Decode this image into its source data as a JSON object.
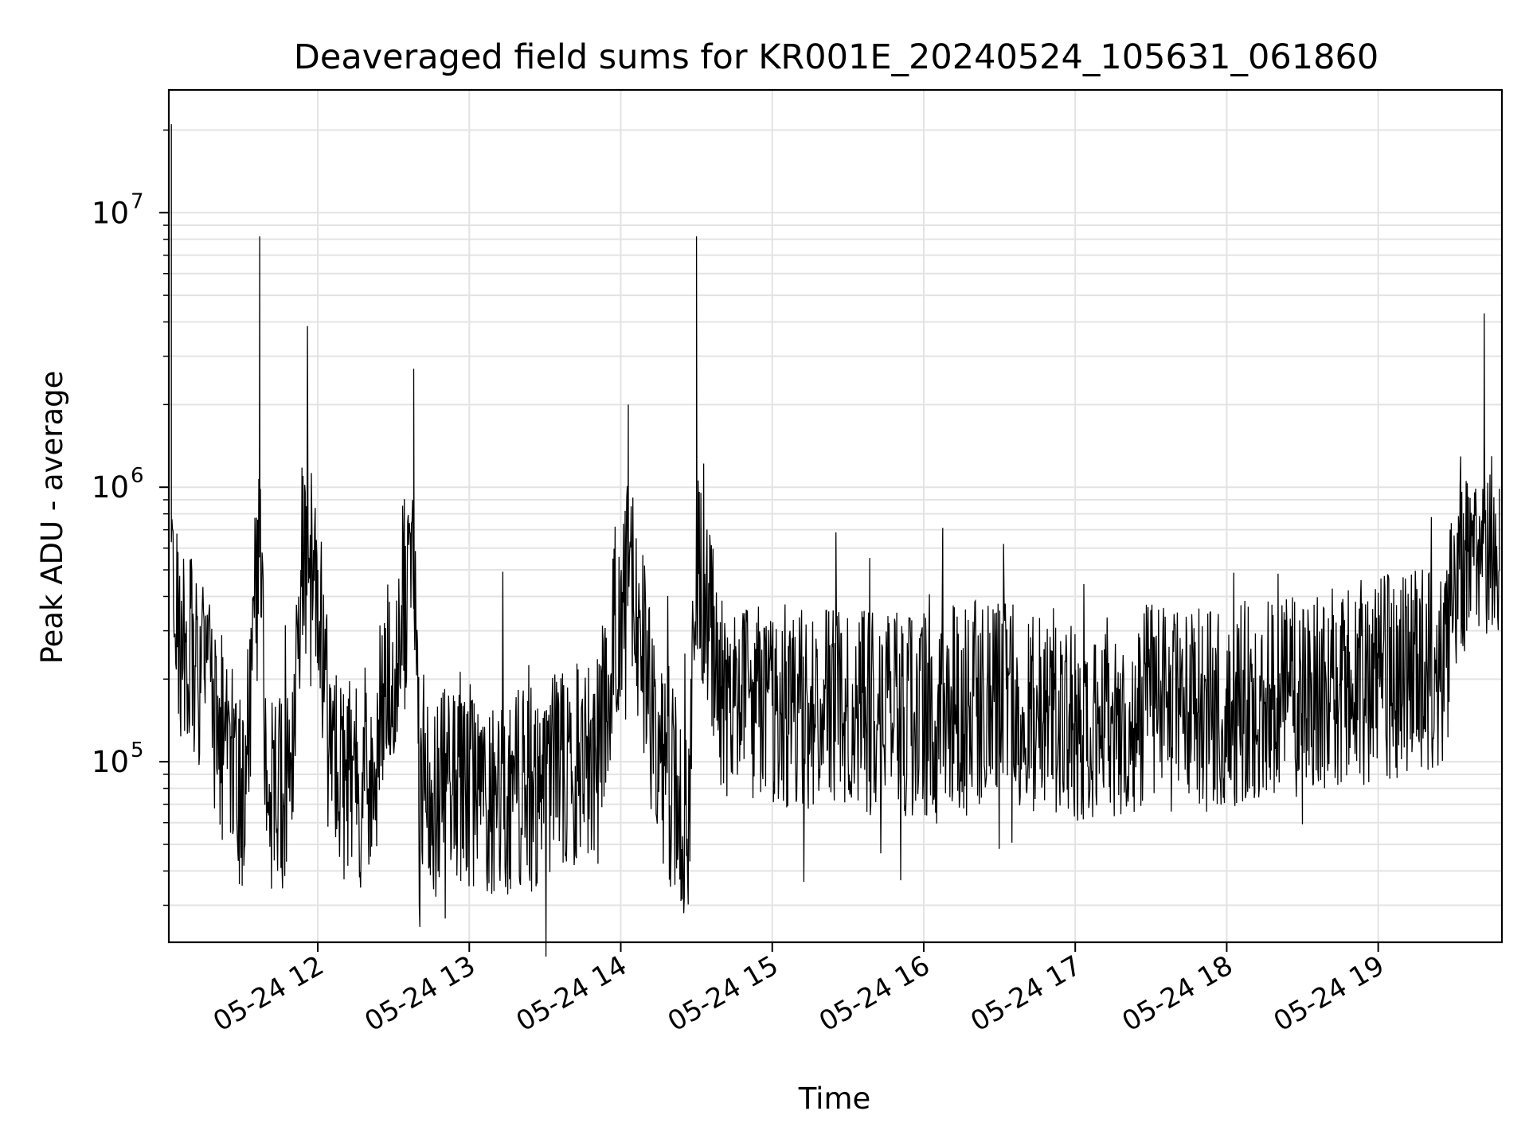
{
  "chart_data": {
    "type": "line",
    "title": "Deaveraged field sums for KR001E_20240524_105631_061860",
    "xlabel": "Time",
    "ylabel": "Peak ADU - average",
    "yscale": "log",
    "ylim": [
      22000,
      28000000
    ],
    "xlim": [
      "05-24 11:01",
      "05-24 19:49"
    ],
    "grid": true,
    "line_color": "#000000",
    "x_ticks": [
      "05-24 12",
      "05-24 13",
      "05-24 14",
      "05-24 15",
      "05-24 16",
      "05-24 17",
      "05-24 18",
      "05-24 19"
    ],
    "y_ticks": [
      {
        "base": "10",
        "exp": "5",
        "value": 100000
      },
      {
        "base": "10",
        "exp": "6",
        "value": 1000000
      },
      {
        "base": "10",
        "exp": "7",
        "value": 10000000
      }
    ],
    "series": [
      {
        "x": [
          "05-24 11:02",
          "05-24 11:05",
          "05-24 11:15",
          "05-24 11:30",
          "05-24 11:37",
          "05-24 11:40",
          "05-24 11:50",
          "05-24 11:54",
          "05-24 12:00",
          "05-24 12:05",
          "05-24 12:20",
          "05-24 12:38",
          "05-24 12:40",
          "05-24 12:55",
          "05-24 13:15",
          "05-24 13:35",
          "05-24 13:50",
          "05-24 14:03",
          "05-24 14:15",
          "05-24 14:27",
          "05-24 14:30",
          "05-24 14:40",
          "05-24 15:00",
          "05-24 15:30",
          "05-24 16:00",
          "05-24 16:30",
          "05-24 17:00",
          "05-24 17:30",
          "05-24 17:45",
          "05-24 18:00",
          "05-24 18:30",
          "05-24 19:00",
          "05-24 19:27",
          "05-24 19:30",
          "05-24 19:42",
          "05-24 19:48"
        ],
        "y": [
          21000000,
          300000,
          200000,
          70000,
          8200000,
          70000,
          80000,
          800000,
          500000,
          90000,
          80000,
          2700000,
          70000,
          85000,
          75000,
          90000,
          110000,
          2000000,
          100000,
          60000,
          8200000,
          170000,
          160000,
          150000,
          150000,
          170000,
          140000,
          160000,
          150000,
          160000,
          180000,
          200000,
          220000,
          450000,
          4300000,
          500000
        ]
      }
    ]
  }
}
